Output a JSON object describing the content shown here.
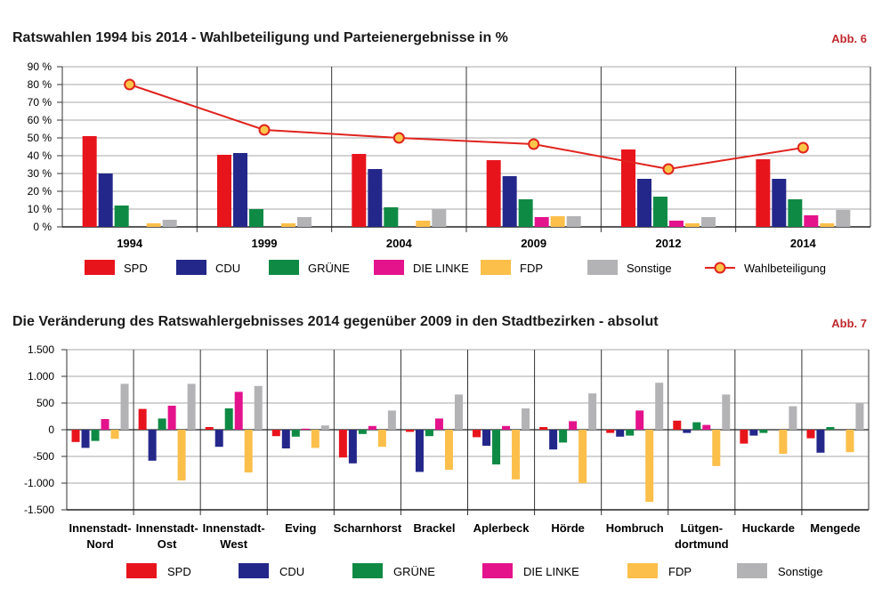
{
  "figure1": {
    "title": "Ratswahlen 1994 bis 2014 - Wahlbeteiligung und Parteienergebnisse in %",
    "tag": "Abb. 6"
  },
  "figure2": {
    "title": "Die Veränderung des Ratswahlergebnisses 2014 gegenüber 2009 in den Stadtbezirken - absolut",
    "tag": "Abb. 7"
  },
  "colors": {
    "SPD": "#e8141c",
    "CDU": "#24278a",
    "GRUENE": "#0f8a45",
    "LINKE": "#e4138c",
    "FDP": "#fbbf4a",
    "Sonstige": "#b3b3b6",
    "Wahlbeteiligung_line": "#e0231e",
    "Wahlbeteiligung_marker": "#fbc54a"
  },
  "chart_data": [
    {
      "type": "bar",
      "categories": [
        "1994",
        "1999",
        "2004",
        "2009",
        "2012",
        "2014"
      ],
      "ylim": [
        0,
        90
      ],
      "yticks": [
        "0 %",
        "10 %",
        "20 %",
        "30 %",
        "40 %",
        "50 %",
        "60 %",
        "70 %",
        "80 %",
        "90 %"
      ],
      "grid": true,
      "legend_position": "bottom",
      "series": [
        {
          "name": "SPD",
          "values": [
            51,
            40.5,
            41,
            37.5,
            43.5,
            38
          ]
        },
        {
          "name": "CDU",
          "values": [
            30,
            41.5,
            32.5,
            28.5,
            27,
            27
          ]
        },
        {
          "name": "GRÜNE",
          "values": [
            12,
            10,
            11,
            15.5,
            17,
            15.5
          ]
        },
        {
          "name": "DIE LINKE",
          "values": [
            0,
            0,
            0,
            5.5,
            3.5,
            6.5
          ]
        },
        {
          "name": "FDP",
          "values": [
            2,
            2,
            3.5,
            6,
            2,
            2
          ]
        },
        {
          "name": "Sonstige",
          "values": [
            4,
            5.5,
            10,
            6,
            5.5,
            9.5
          ]
        }
      ],
      "line_series": {
        "name": "Wahlbeteiligung",
        "values": [
          80,
          54.5,
          50,
          46.5,
          32.5,
          44.5
        ]
      }
    },
    {
      "type": "bar",
      "categories": [
        [
          "Innenstadt-",
          "Nord"
        ],
        [
          "Innenstadt-",
          "Ost"
        ],
        [
          "Innenstadt-",
          "West"
        ],
        [
          "Eving"
        ],
        [
          "Scharnhorst"
        ],
        [
          "Brackel"
        ],
        [
          "Aplerbeck"
        ],
        [
          "Hörde"
        ],
        [
          "Hombruch"
        ],
        [
          "Lütgen-",
          "dortmund"
        ],
        [
          "Huckarde"
        ],
        [
          "Mengede"
        ]
      ],
      "ylim": [
        -1500,
        1500
      ],
      "yticks": [
        "-1.500",
        "-1.000",
        "-500",
        "0",
        "500",
        "1.000",
        "1.500"
      ],
      "grid": true,
      "legend_position": "bottom",
      "series": [
        {
          "name": "SPD",
          "values": [
            -230,
            390,
            50,
            -120,
            -520,
            -40,
            -140,
            50,
            -60,
            170,
            -260,
            -160
          ]
        },
        {
          "name": "CDU",
          "values": [
            -340,
            -580,
            -320,
            -350,
            -630,
            -790,
            -300,
            -370,
            -130,
            -60,
            -110,
            -430
          ]
        },
        {
          "name": "GRÜNE",
          "values": [
            -210,
            210,
            400,
            -130,
            -80,
            -120,
            -650,
            -240,
            -110,
            140,
            -60,
            50
          ]
        },
        {
          "name": "DIE LINKE",
          "values": [
            200,
            450,
            710,
            20,
            70,
            210,
            70,
            160,
            360,
            90,
            0,
            0
          ]
        },
        {
          "name": "FDP",
          "values": [
            -170,
            -950,
            -800,
            -340,
            -320,
            -750,
            -930,
            -1000,
            -1350,
            -680,
            -450,
            -420
          ]
        },
        {
          "name": "Sonstige",
          "values": [
            860,
            860,
            820,
            80,
            360,
            660,
            400,
            680,
            880,
            660,
            440,
            500
          ]
        }
      ]
    }
  ]
}
